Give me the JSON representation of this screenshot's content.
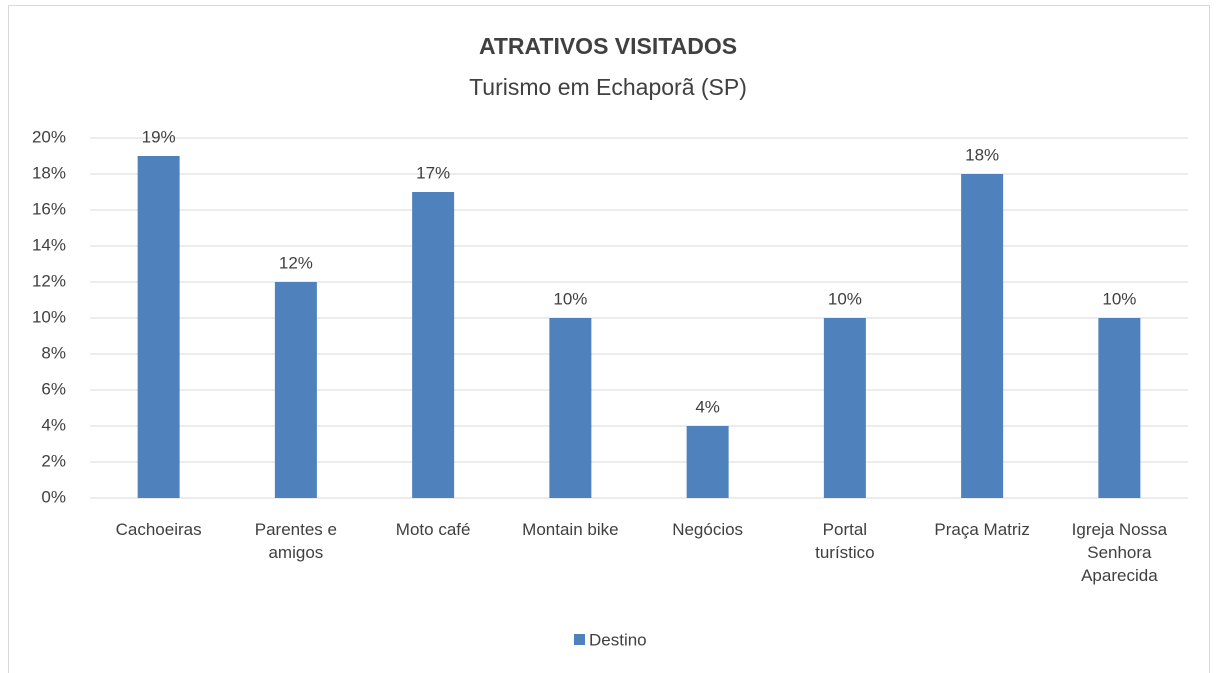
{
  "chart_data": {
    "type": "bar",
    "title": "ATRATIVOS VISITADOS",
    "subtitle": "Turismo em Echaporã (SP)",
    "categories": [
      "Cachoeiras",
      "Parentes e amigos",
      "Moto café",
      "Montain bike",
      "Negócios",
      "Portal turístico",
      "Praça Matriz",
      "Igreja Nossa Senhora Aparecida"
    ],
    "series": [
      {
        "name": "Destino",
        "color": "#4f81bd",
        "values": [
          19,
          12,
          17,
          10,
          4,
          10,
          18,
          10
        ],
        "value_labels": [
          "19%",
          "12%",
          "17%",
          "10%",
          "4%",
          "10%",
          "18%",
          "10%"
        ]
      }
    ],
    "ylim": [
      0,
      20
    ],
    "yticks": [
      {
        "value": 0,
        "label": "0%"
      },
      {
        "value": 2,
        "label": "2%"
      },
      {
        "value": 4,
        "label": "4%"
      },
      {
        "value": 6,
        "label": "6%"
      },
      {
        "value": 8,
        "label": "8%"
      },
      {
        "value": 10,
        "label": "10%"
      },
      {
        "value": 12,
        "label": "12%"
      },
      {
        "value": 14,
        "label": "14%"
      },
      {
        "value": 16,
        "label": "16%"
      },
      {
        "value": 18,
        "label": "18%"
      },
      {
        "value": 20,
        "label": "20%"
      }
    ],
    "grid": true,
    "legend": "bottom"
  }
}
